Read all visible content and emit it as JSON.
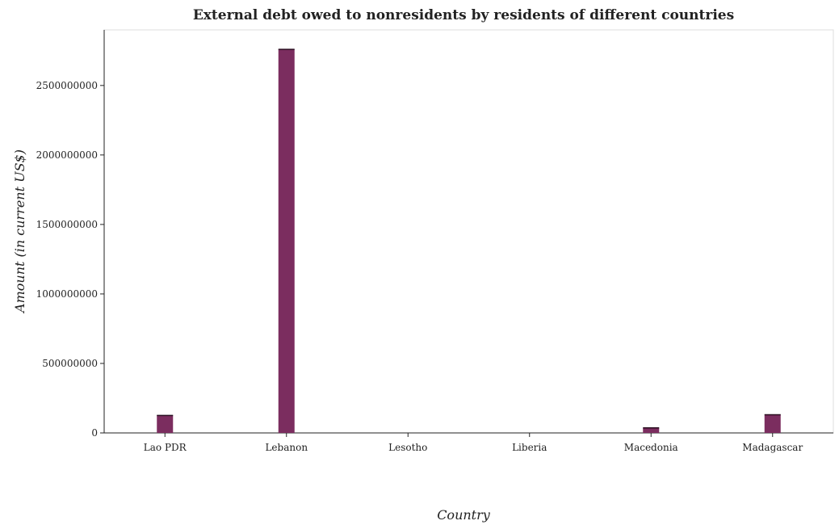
{
  "chart_data": {
    "type": "bar",
    "title": "External debt owed to nonresidents by residents of different countries",
    "xlabel": "Country",
    "ylabel": "Amount (in current US$)",
    "categories": [
      "Lao PDR",
      "Lebanon",
      "Lesotho",
      "Liberia",
      "Macedonia",
      "Madagascar"
    ],
    "values": [
      126000000,
      2760000000,
      0,
      0,
      36000000,
      131000000
    ],
    "yticks": [
      0,
      500000000,
      1000000000,
      1500000000,
      2000000000,
      2500000000
    ],
    "ytick_labels": [
      "0",
      "500000000",
      "1000000000",
      "1500000000",
      "2000000000",
      "2500000000"
    ],
    "ylim": [
      0,
      2900000000
    ],
    "grid": false,
    "bar_color": "#7b2d5f"
  }
}
